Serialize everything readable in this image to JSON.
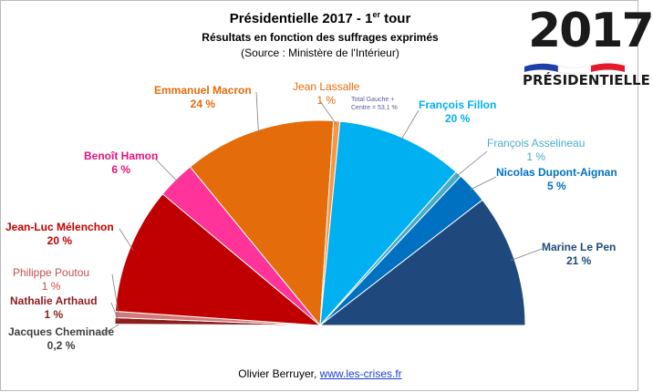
{
  "title": {
    "main": "Présidentielle  2017 - 1",
    "sup": "er",
    "tail": " tour",
    "line2": "Résultats en fonction des suffrages exprimés",
    "line3": "(Source : Ministère de l'Intérieur)"
  },
  "logo": {
    "year": "2017",
    "word": "PRÉSIDENTIELLE"
  },
  "note": {
    "line1": "Total Gauche +",
    "line2": "Centre = 53,1 %"
  },
  "credit": {
    "author": "Olivier Berruyer,",
    "site": "www.les-crises.fr"
  },
  "chart_data": {
    "type": "pie",
    "shape": "half-donut (hemicycle)",
    "title": "Présidentielle 2017 - 1er tour",
    "subtitle": "Résultats en fonction des suffrages exprimés",
    "slices": [
      {
        "name": "Jacques Cheminade",
        "value": 0.2,
        "label": "0,2 %",
        "color": "#a9a9a9"
      },
      {
        "name": "Nathalie Arthaud",
        "value": 1,
        "label": "1 %",
        "color": "#8b1e1e"
      },
      {
        "name": "Philippe Poutou",
        "value": 1,
        "label": "1 %",
        "color": "#d27a7a"
      },
      {
        "name": "Jean-Luc Mélenchon",
        "value": 20,
        "label": "20 %",
        "color": "#c00000"
      },
      {
        "name": "Benoît Hamon",
        "value": 6,
        "label": "6 %",
        "color": "#ff3399"
      },
      {
        "name": "Emmanuel Macron",
        "value": 24,
        "label": "24 %",
        "color": "#e46c0a"
      },
      {
        "name": "Jean Lassalle",
        "value": 1,
        "label": "1 %",
        "color": "#f79646"
      },
      {
        "name": "François Fillon",
        "value": 20,
        "label": "20 %",
        "color": "#00b0f0"
      },
      {
        "name": "François Asselineau",
        "value": 1,
        "label": "1 %",
        "color": "#4bacc6"
      },
      {
        "name": "Nicolas Dupont-Aignan",
        "value": 5,
        "label": "5 %",
        "color": "#0070c0"
      },
      {
        "name": "Marine Le Pen",
        "value": 21,
        "label": "21 %",
        "color": "#1f497d"
      }
    ]
  }
}
